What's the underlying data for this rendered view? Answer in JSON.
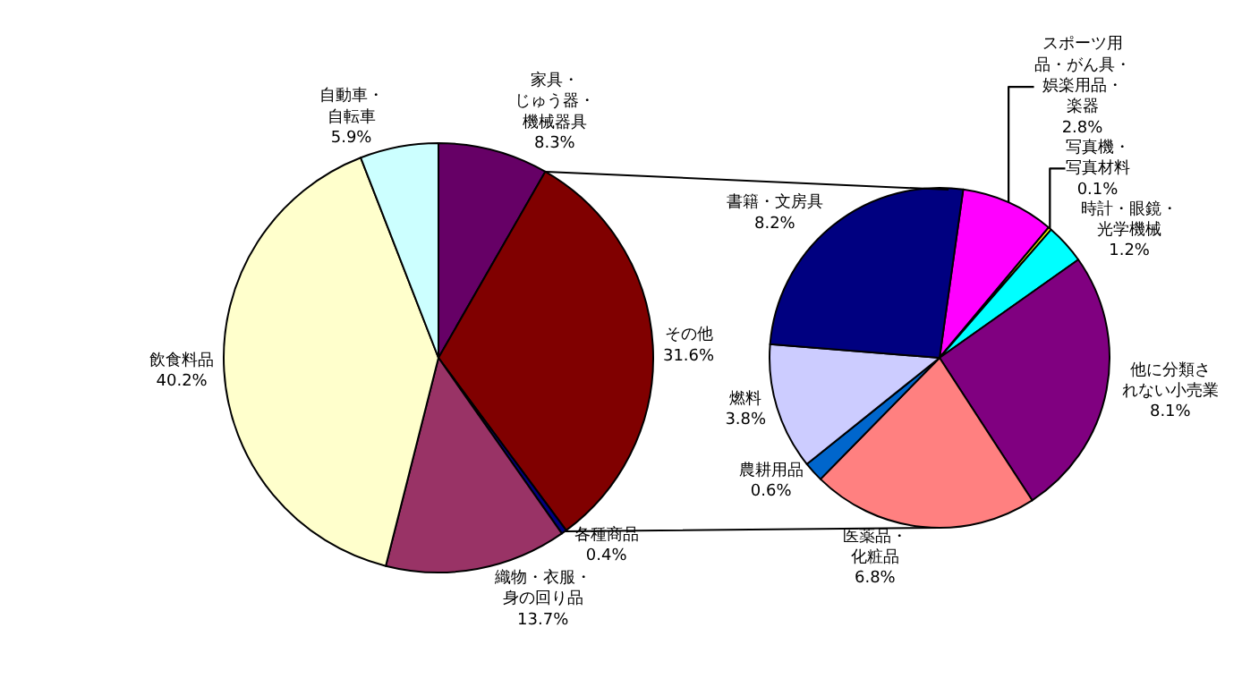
{
  "chart_data": [
    {
      "type": "pie",
      "categories": [
        "家具・じゅう器・機械器具",
        "その他",
        "各種商品",
        "織物・衣服・身の回り品",
        "飲食料品",
        "自動車・自転車"
      ],
      "values": [
        8.3,
        31.6,
        0.4,
        13.7,
        40.2,
        5.9
      ],
      "colors": [
        "#660066",
        "#800000",
        "#000080",
        "#993366",
        "#ffffcc",
        "#ccffff"
      ],
      "value_labels": [
        "8.3%",
        "31.6%",
        "0.4%",
        "13.7%",
        "40.2%",
        "5.9%"
      ],
      "legend": false
    },
    {
      "type": "pie",
      "categories": [
        "スポーツ用品・がん具・娯楽用品・楽器",
        "写真機・写真材料",
        "時計・眼鏡・光学機械",
        "他に分類されない小売業",
        "医薬品・化粧品",
        "農耕用品",
        "燃料",
        "書籍・文房具"
      ],
      "values": [
        2.8,
        0.1,
        1.2,
        8.1,
        6.8,
        0.6,
        3.8,
        8.2
      ],
      "colors": [
        "#ff00ff",
        "#ffff00",
        "#00ffff",
        "#800080",
        "#ff8080",
        "#0066cc",
        "#ccccff",
        "#000080"
      ],
      "value_labels": [
        "2.8%",
        "0.1%",
        "1.2%",
        "8.1%",
        "6.8%",
        "0.6%",
        "3.8%",
        "8.2%"
      ],
      "legend": false
    }
  ]
}
